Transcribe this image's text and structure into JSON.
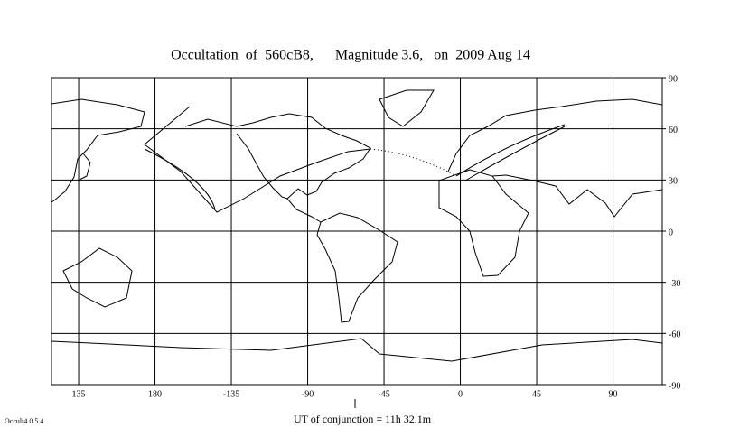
{
  "chart_data": {
    "type": "map",
    "title": "Occultation  of  560cB8,      Magnitude 3.6,   on  2009 Aug 14",
    "xlim": [
      -241,
      119
    ],
    "ylim": [
      -90,
      90
    ],
    "xticks": [
      135,
      180,
      -135,
      -90,
      -45,
      0,
      45,
      90
    ],
    "yticks": [
      90,
      60,
      30,
      0,
      -30,
      -60,
      -90
    ],
    "grid": true,
    "conjunction_label": "UT of conjunction = 11h 32.1m",
    "software": "Occult4.0.5.4"
  }
}
